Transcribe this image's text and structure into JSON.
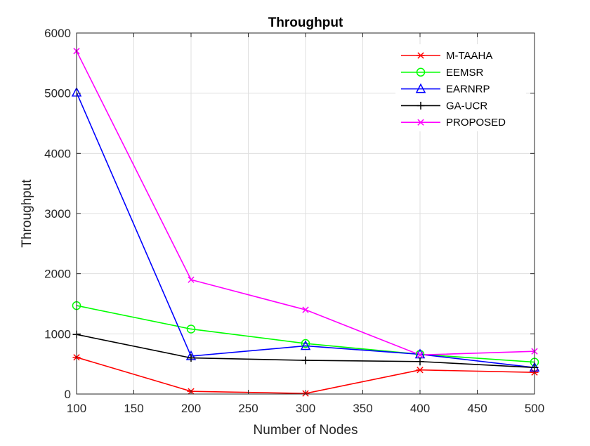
{
  "chart_data": {
    "type": "line",
    "title": "Throughput",
    "xlabel": "Number of Nodes",
    "ylabel": "Throughput",
    "xlim": [
      100,
      500
    ],
    "ylim": [
      0,
      6000
    ],
    "xticks": [
      100,
      150,
      200,
      250,
      300,
      350,
      400,
      450,
      500
    ],
    "yticks": [
      0,
      1000,
      2000,
      3000,
      4000,
      5000,
      6000
    ],
    "grid": true,
    "legend_position": "top-right",
    "x": [
      100,
      200,
      300,
      400,
      500
    ],
    "series": [
      {
        "name": "M-TAAHA",
        "color": "#ff0000",
        "marker": "asterisk",
        "values": [
          610,
          45,
          10,
          400,
          360
        ]
      },
      {
        "name": "EEMSR",
        "color": "#00ff00",
        "marker": "circle",
        "values": [
          1470,
          1080,
          840,
          660,
          530
        ]
      },
      {
        "name": "EARNRP",
        "color": "#0000ff",
        "marker": "triangle",
        "values": [
          5010,
          630,
          800,
          660,
          440
        ]
      },
      {
        "name": "GA-UCR",
        "color": "#000000",
        "marker": "plus",
        "values": [
          990,
          600,
          560,
          540,
          440
        ]
      },
      {
        "name": "PROPOSED",
        "color": "#ff00ff",
        "marker": "x",
        "values": [
          5700,
          1900,
          1400,
          650,
          710
        ]
      }
    ]
  }
}
